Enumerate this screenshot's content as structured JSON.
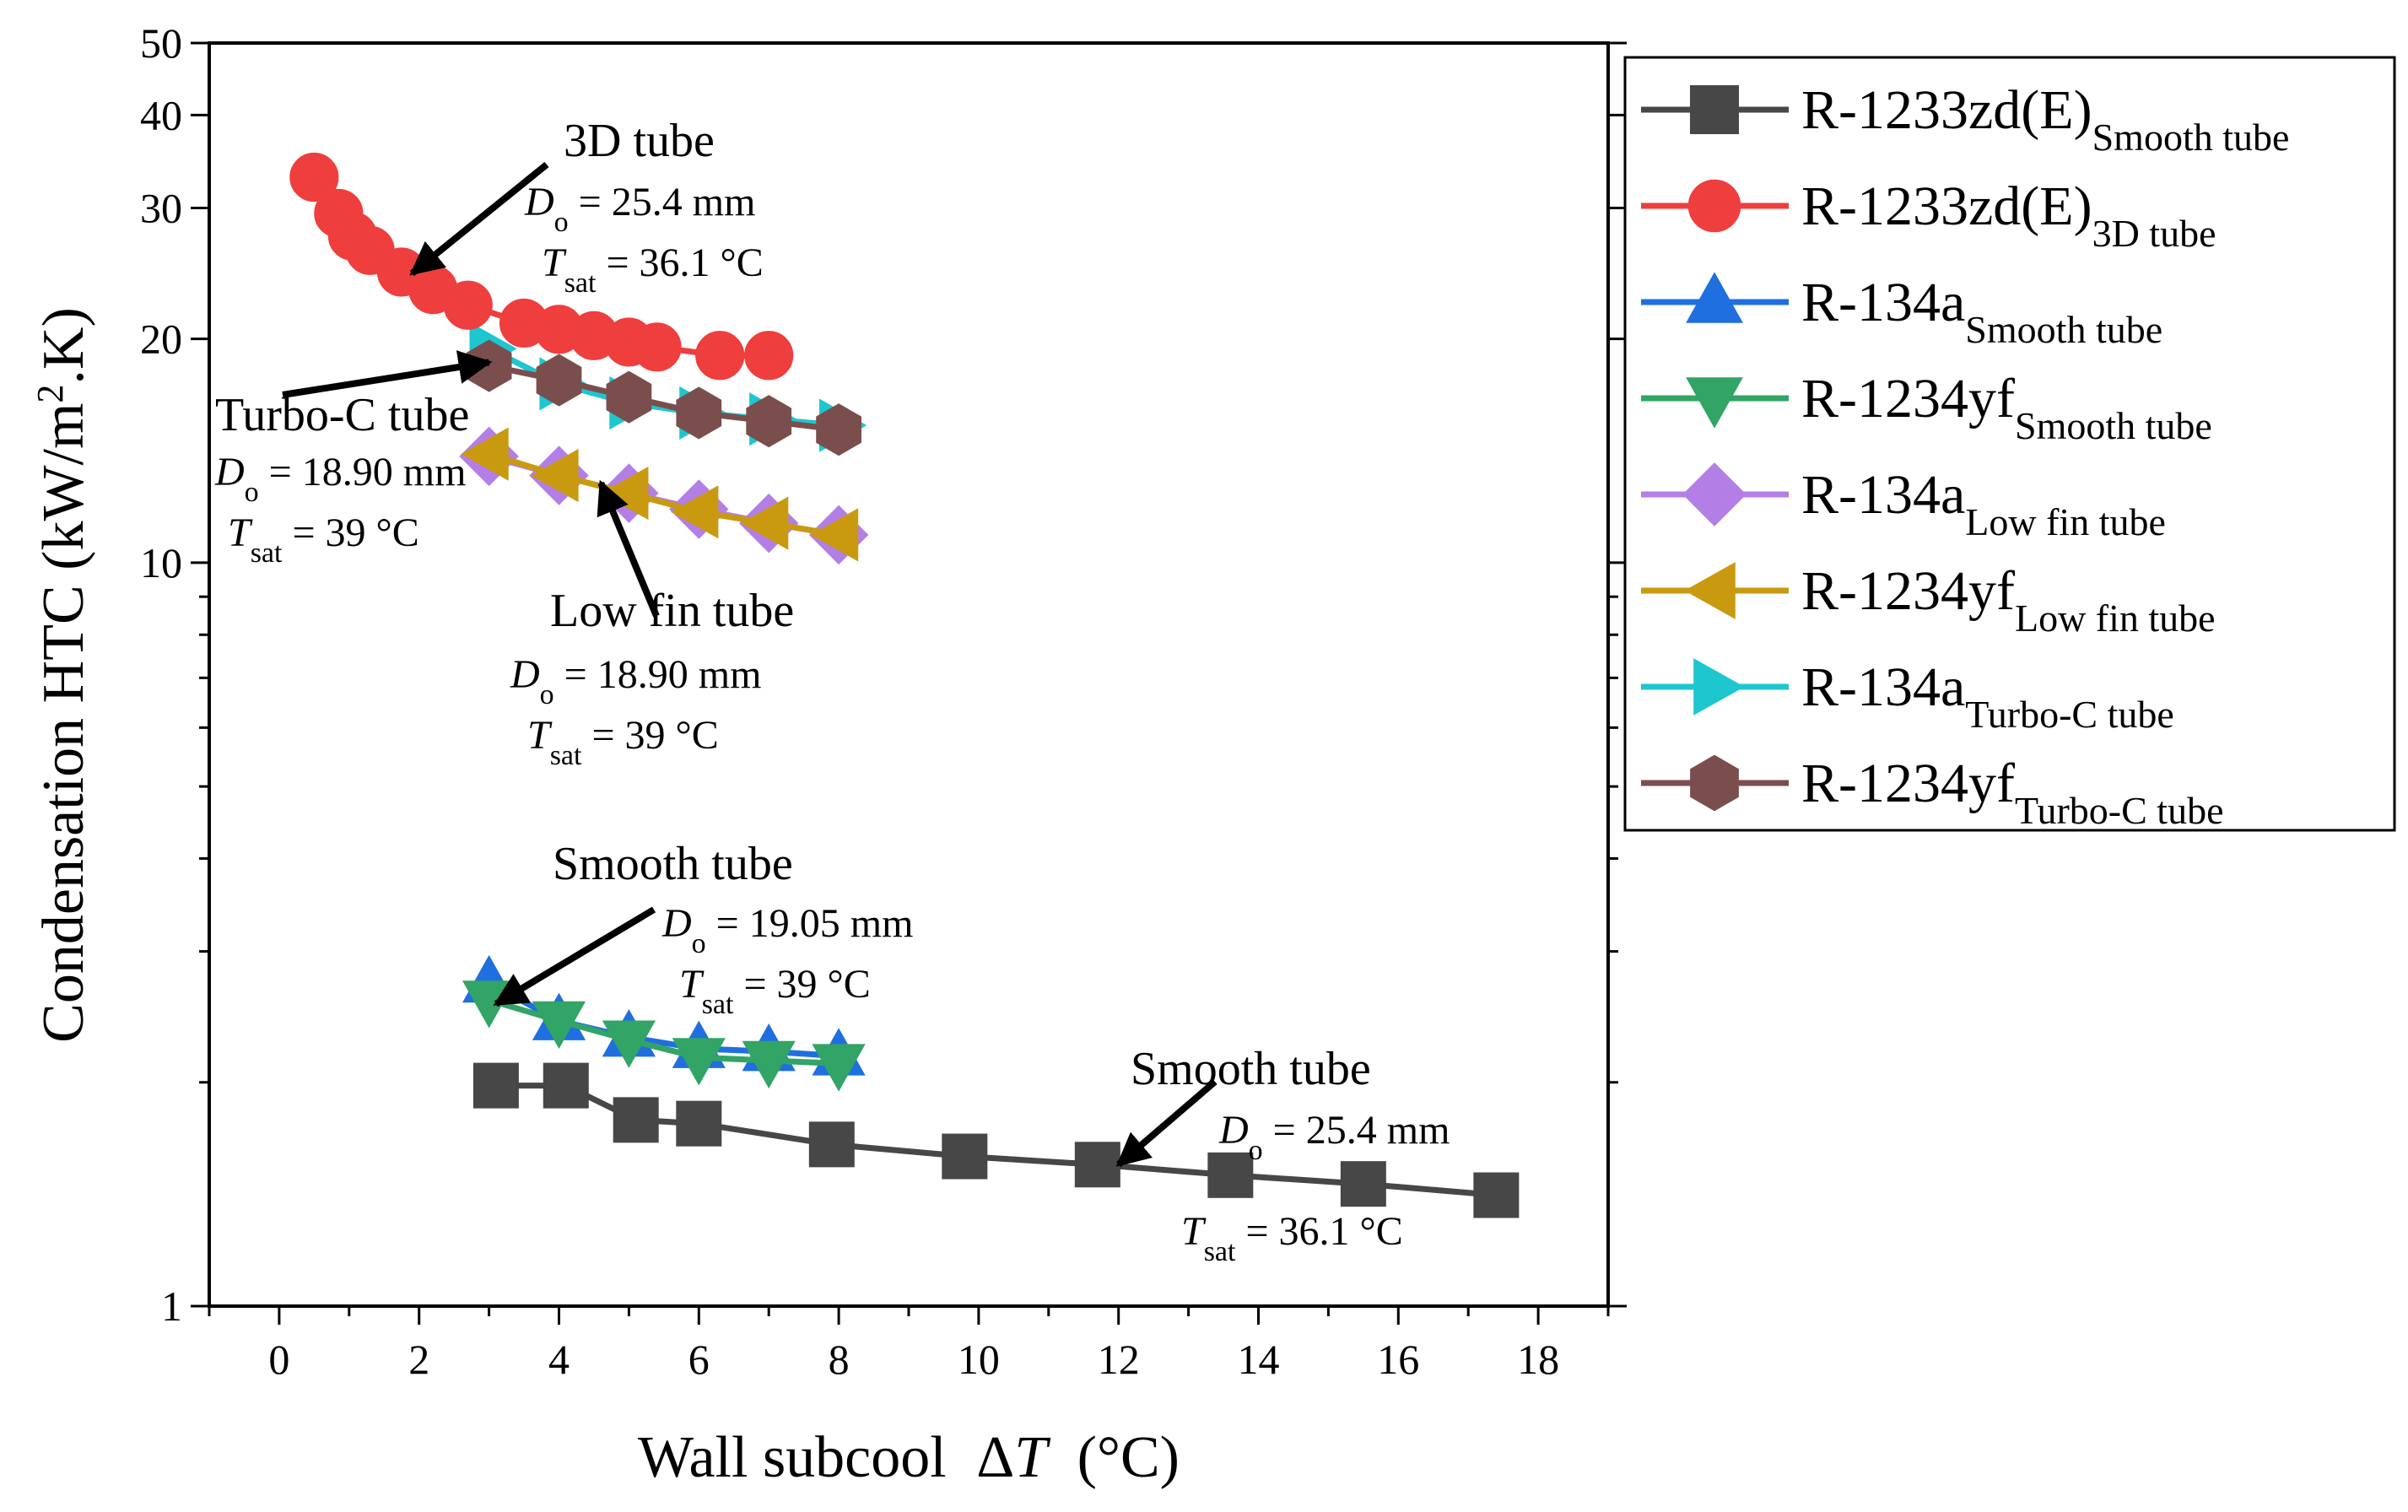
{
  "chart_data": {
    "type": "scatter",
    "xlabel": "Wall subcool",
    "xlabel_symbol": "ΔT",
    "xlabel_unit": "(°C)",
    "ylabel": "Condensation HTC (kW/m",
    "ylabel_sup": "2",
    "ylabel_end": ".K)",
    "xlim": [
      -1,
      19
    ],
    "ylim": [
      1,
      50
    ],
    "yscale": "log",
    "x_ticks": [
      0,
      2,
      4,
      6,
      8,
      10,
      12,
      14,
      16,
      18
    ],
    "y_ticks": [
      1,
      10,
      20,
      30,
      40,
      50
    ],
    "legend_position": "outside-right-top",
    "series": [
      {
        "name": "R-1233zd(E)",
        "sub": "Smooth tube",
        "color": "#474747",
        "marker": "square",
        "x": [
          3.1,
          4.1,
          5.1,
          6.0,
          7.9,
          9.8,
          11.7,
          13.6,
          15.5,
          17.4
        ],
        "y": [
          1.98,
          1.98,
          1.78,
          1.76,
          1.65,
          1.59,
          1.55,
          1.5,
          1.46,
          1.41
        ]
      },
      {
        "name": "R-1233zd(E)",
        "sub": "3D tube",
        "color": "#ee3e3e",
        "marker": "circle",
        "x": [
          0.5,
          0.85,
          1.05,
          1.3,
          1.75,
          2.2,
          2.7,
          3.5,
          4.0,
          4.5,
          5.0,
          5.4,
          6.3,
          7.0
        ],
        "y": [
          33.0,
          29.5,
          27.5,
          26.3,
          24.6,
          23.3,
          22.2,
          21.0,
          20.6,
          20.2,
          19.8,
          19.5,
          19.0,
          19.0
        ]
      },
      {
        "name": "R-134a",
        "sub": "Smooth tube",
        "color": "#1f6fe0",
        "marker": "triangle-up",
        "x": [
          3.0,
          4.0,
          5.0,
          6.0,
          7.0,
          8.0
        ],
        "y": [
          2.72,
          2.42,
          2.3,
          2.22,
          2.2,
          2.17
        ]
      },
      {
        "name": "R-1234yf",
        "sub": "Smooth tube",
        "color": "#32a465",
        "marker": "triangle-down",
        "x": [
          3.0,
          4.0,
          5.0,
          6.0,
          7.0,
          8.0
        ],
        "y": [
          2.58,
          2.42,
          2.28,
          2.16,
          2.14,
          2.12
        ]
      },
      {
        "name": "R-134a",
        "sub": "Low fin tube",
        "color": "#b37ee6",
        "marker": "diamond",
        "x": [
          3.0,
          4.0,
          5.0,
          6.0,
          7.0,
          8.0
        ],
        "y": [
          13.9,
          13.1,
          12.4,
          11.8,
          11.3,
          10.9
        ]
      },
      {
        "name": "R-1234yf",
        "sub": "Low fin tube",
        "color": "#c99a10",
        "marker": "triangle-left",
        "x": [
          3.0,
          4.0,
          5.0,
          6.0,
          7.0,
          8.0
        ],
        "y": [
          14.0,
          13.1,
          12.4,
          11.7,
          11.3,
          10.9
        ]
      },
      {
        "name": "R-134a",
        "sub": "Turbo-C tube",
        "color": "#1ec6d0",
        "marker": "triangle-right",
        "x": [
          3.0,
          4.0,
          5.0,
          6.0,
          7.0,
          8.0
        ],
        "y": [
          19.4,
          17.4,
          16.4,
          15.9,
          15.6,
          15.3
        ]
      },
      {
        "name": "R-1234yf",
        "sub": "Turbo-C tube",
        "color": "#7b4e4e",
        "marker": "hexagon",
        "x": [
          3.0,
          4.0,
          5.0,
          6.0,
          7.0,
          8.0
        ],
        "y": [
          18.4,
          17.6,
          16.7,
          15.9,
          15.5,
          15.1
        ]
      }
    ],
    "annotations": [
      {
        "id": "3d",
        "title": "3D tube",
        "lines": [
          {
            "sym": "D",
            "sub": "o",
            "rest": " = 25.4 mm"
          },
          {
            "sym": "T",
            "sub": "sat",
            "rest": " = 36.1 °C"
          }
        ],
        "arrow_to": {
          "x": 1.9,
          "y": 24.5
        }
      },
      {
        "id": "turbo",
        "title": "Turbo-C tube",
        "lines": [
          {
            "sym": "D",
            "sub": "o",
            "rest": " = 18.90 mm"
          },
          {
            "sym": "T",
            "sub": "sat",
            "rest": " = 39 °C"
          }
        ],
        "arrow_to": {
          "x": 3.0,
          "y": 18.6
        }
      },
      {
        "id": "lowfin",
        "title": "Low fin tube",
        "lines": [
          {
            "sym": "D",
            "sub": "o",
            "rest": " = 18.90 mm"
          },
          {
            "sym": "T",
            "sub": "sat",
            "rest": " = 39 °C"
          }
        ],
        "arrow_to": {
          "x": 4.6,
          "y": 12.8
        }
      },
      {
        "id": "smooth-low",
        "title": "Smooth tube",
        "lines": [
          {
            "sym": "D",
            "sub": "o",
            "rest": " = 19.05 mm"
          },
          {
            "sym": "T",
            "sub": "sat",
            "rest": " = 39 °C"
          }
        ],
        "arrow_to": {
          "x": 3.1,
          "y": 2.55
        }
      },
      {
        "id": "smooth-r1233",
        "title": "Smooth tube",
        "lines": [
          {
            "sym": "D",
            "sub": "o",
            "rest": " = 25.4 mm"
          },
          {
            "sym": "T",
            "sub": "sat",
            "rest": " = 36.1 °C"
          }
        ],
        "arrow_to": {
          "x": 12.0,
          "y": 1.55
        }
      }
    ]
  }
}
